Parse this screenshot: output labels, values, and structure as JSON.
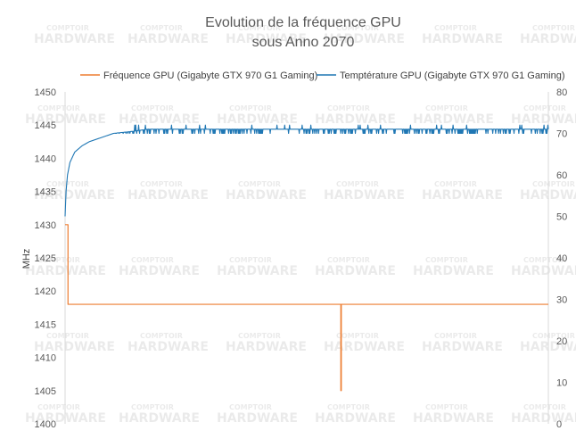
{
  "chart_data": {
    "type": "line",
    "title": [
      "Evolution de la fréquence GPU",
      "sous Anno 2070"
    ],
    "ylabel_left": "MHz",
    "ylabel_right": "",
    "xlabel": "",
    "ylim_left": [
      1400,
      1450
    ],
    "ylim_right": [
      0,
      80
    ],
    "yticks_left": [
      1400,
      1405,
      1410,
      1415,
      1420,
      1425,
      1430,
      1435,
      1440,
      1445,
      1450
    ],
    "yticks_right": [
      0,
      10,
      20,
      30,
      40,
      50,
      60,
      70,
      80
    ],
    "grid": false,
    "legend_position": "top",
    "x_count": 1000,
    "series": [
      {
        "name": "Fréquence GPU (Gigabyte GTX 970 G1 Gaming)",
        "axis": "left",
        "color": "#ED7D31",
        "points": [
          [
            0,
            1430
          ],
          [
            6,
            1430
          ],
          [
            6,
            1418
          ],
          [
            570,
            1418
          ],
          [
            570,
            1405
          ],
          [
            571,
            1405
          ],
          [
            571,
            1418
          ],
          [
            999,
            1418
          ]
        ]
      },
      {
        "name": "Temptérature GPU (Gigabyte GTX 970 G1 Gaming)",
        "axis": "right",
        "color": "#1F77B4",
        "points": [
          [
            0,
            50
          ],
          [
            2,
            56
          ],
          [
            5,
            60
          ],
          [
            10,
            63
          ],
          [
            20,
            65.5
          ],
          [
            35,
            67
          ],
          [
            50,
            68
          ],
          [
            75,
            69
          ],
          [
            100,
            70
          ],
          [
            140,
            70.5
          ],
          [
            170,
            71
          ],
          [
            999,
            71
          ]
        ],
        "fluctuation": {
          "start": 100,
          "low": 70,
          "high": 72
        }
      }
    ],
    "watermark_text": [
      "COMPTOIR",
      "HARDWARE"
    ]
  }
}
